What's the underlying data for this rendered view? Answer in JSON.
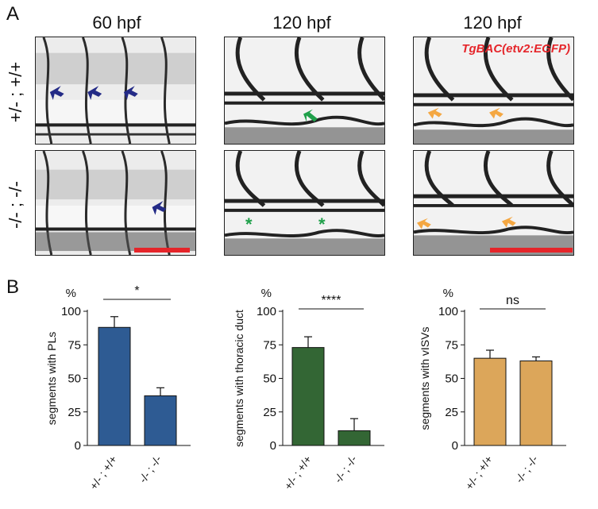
{
  "figure": {
    "panel_a_label": "A",
    "panel_b_label": "B",
    "column_titles": [
      "60 hpf",
      "120 hpf",
      "120 hpf"
    ],
    "row_labels": [
      "+/- ; +/+",
      "-/- ; -/-"
    ],
    "transgene_label": "TgBAC(etv2:EGFP)",
    "asterisk_marker": "*",
    "colors": {
      "arrow_blue": "#232a86",
      "arrow_green": "#1fa04a",
      "arrow_orange": "#f4a742",
      "scalebar_red": "#e5252a",
      "transgene_red": "#e5252a"
    }
  },
  "chart_data": [
    {
      "type": "bar",
      "categories": [
        "+/- ; +/+",
        "-/- ; -/-"
      ],
      "values": [
        88,
        37
      ],
      "errors": [
        8,
        6
      ],
      "ylabel": "segments with PLs",
      "unit": "%",
      "ylim": [
        0,
        100
      ],
      "yticks": [
        0,
        25,
        50,
        75,
        100
      ],
      "significance": "*",
      "color": "#2e5b93"
    },
    {
      "type": "bar",
      "categories": [
        "+/- ; +/+",
        "-/- ; -/-"
      ],
      "values": [
        73,
        11
      ],
      "errors": [
        8,
        9
      ],
      "ylabel": "segments with thoracic duct",
      "unit": "%",
      "ylim": [
        0,
        100
      ],
      "yticks": [
        0,
        25,
        50,
        75,
        100
      ],
      "significance": "****",
      "color": "#336634"
    },
    {
      "type": "bar",
      "categories": [
        "+/- ; +/+",
        "-/- ; -/-"
      ],
      "values": [
        65,
        63
      ],
      "errors": [
        6,
        3
      ],
      "ylabel": "segments with vISVs",
      "unit": "%",
      "ylim": [
        0,
        100
      ],
      "yticks": [
        0,
        25,
        50,
        75,
        100
      ],
      "significance": "ns",
      "color": "#dca65a"
    }
  ]
}
